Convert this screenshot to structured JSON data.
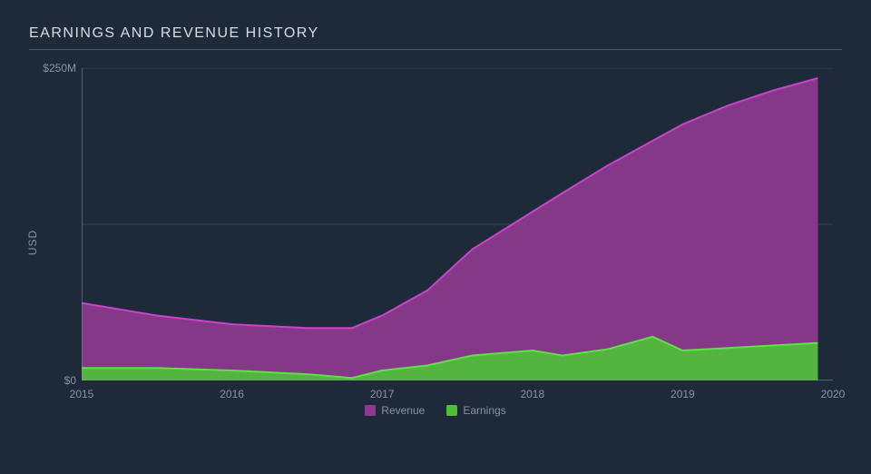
{
  "chart": {
    "type": "area",
    "title": "EARNINGS AND REVENUE HISTORY",
    "title_fontsize": 16,
    "title_color": "#d8dce0",
    "background_color": "#1e2a3a",
    "plot_bg": "#1e2a3a",
    "grid_color": "#3a4656",
    "axis_color": "#8a94a0",
    "tick_fontsize": 12,
    "tick_color": "#8a94a0",
    "ylabel": "USD",
    "ylabel_fontsize": 12,
    "xlim": [
      2015,
      2020
    ],
    "ylim": [
      0,
      250
    ],
    "yticks": [
      {
        "v": 0,
        "label": "$0"
      },
      {
        "v": 250,
        "label": "$250M"
      }
    ],
    "xticks": [
      {
        "v": 2015,
        "label": "2015"
      },
      {
        "v": 2016,
        "label": "2016"
      },
      {
        "v": 2017,
        "label": "2017"
      },
      {
        "v": 2018,
        "label": "2018"
      },
      {
        "v": 2019,
        "label": "2019"
      },
      {
        "v": 2020,
        "label": "2020"
      }
    ],
    "gridlines_y": [
      125
    ],
    "series": [
      {
        "name": "Revenue",
        "fill_color": "#8e3a8e",
        "stroke_color": "#c844c8",
        "stroke_width": 2,
        "fill_opacity": 0.92,
        "points": [
          {
            "x": 2015.0,
            "y": 62
          },
          {
            "x": 2015.5,
            "y": 52
          },
          {
            "x": 2016.0,
            "y": 45
          },
          {
            "x": 2016.5,
            "y": 42
          },
          {
            "x": 2016.8,
            "y": 42
          },
          {
            "x": 2017.0,
            "y": 52
          },
          {
            "x": 2017.3,
            "y": 72
          },
          {
            "x": 2017.6,
            "y": 105
          },
          {
            "x": 2018.0,
            "y": 135
          },
          {
            "x": 2018.2,
            "y": 150
          },
          {
            "x": 2018.5,
            "y": 172
          },
          {
            "x": 2019.0,
            "y": 205
          },
          {
            "x": 2019.3,
            "y": 220
          },
          {
            "x": 2019.6,
            "y": 232
          },
          {
            "x": 2019.9,
            "y": 242
          }
        ]
      },
      {
        "name": "Earnings",
        "fill_color": "#4fbf3a",
        "stroke_color": "#5fe048",
        "stroke_width": 2,
        "fill_opacity": 0.92,
        "points": [
          {
            "x": 2015.0,
            "y": 10
          },
          {
            "x": 2015.5,
            "y": 10
          },
          {
            "x": 2016.0,
            "y": 8
          },
          {
            "x": 2016.5,
            "y": 5
          },
          {
            "x": 2016.8,
            "y": 2
          },
          {
            "x": 2017.0,
            "y": 8
          },
          {
            "x": 2017.3,
            "y": 12
          },
          {
            "x": 2017.6,
            "y": 20
          },
          {
            "x": 2018.0,
            "y": 24
          },
          {
            "x": 2018.2,
            "y": 20
          },
          {
            "x": 2018.5,
            "y": 25
          },
          {
            "x": 2018.8,
            "y": 35
          },
          {
            "x": 2019.0,
            "y": 24
          },
          {
            "x": 2019.3,
            "y": 26
          },
          {
            "x": 2019.6,
            "y": 28
          },
          {
            "x": 2019.9,
            "y": 30
          }
        ]
      }
    ],
    "legend": {
      "position": "bottom-center",
      "fontsize": 12,
      "color": "#8a94a0",
      "items": [
        {
          "label": "Revenue",
          "color": "#8e3a8e"
        },
        {
          "label": "Earnings",
          "color": "#4fbf3a"
        }
      ]
    }
  }
}
